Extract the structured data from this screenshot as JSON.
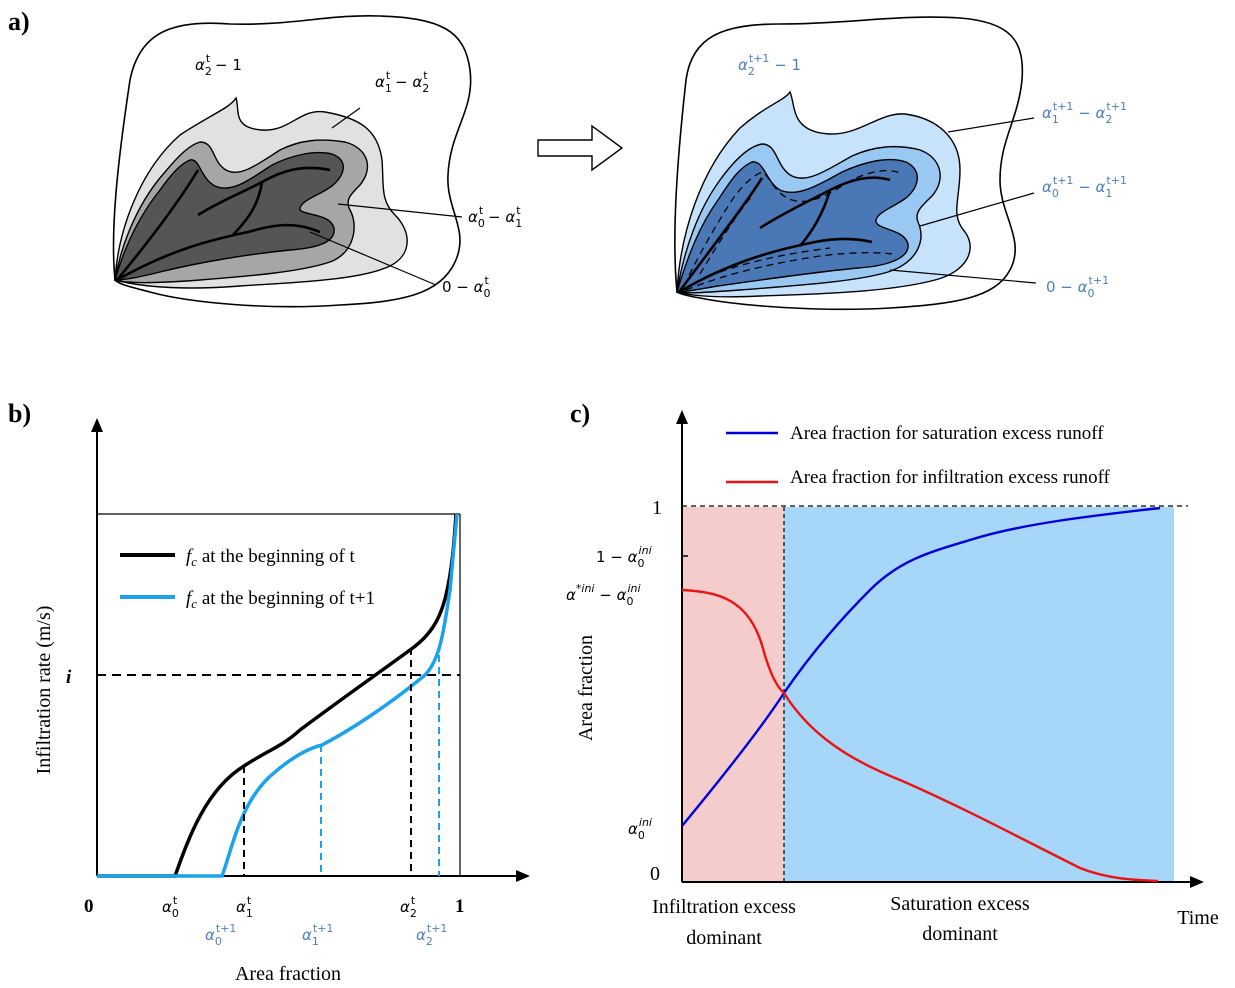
{
  "panels": {
    "a": {
      "label": "a)"
    },
    "b": {
      "label": "b)"
    },
    "c": {
      "label": "c)"
    }
  },
  "diagram_a": {
    "left": {
      "labels": {
        "outer": {
          "base": "α",
          "sub": "2",
          "sup": "t",
          "tail": " − 1"
        },
        "z12": {
          "base1": "α",
          "sub1": "1",
          "sup1": "t",
          "mid": " − ",
          "base2": "α",
          "sub2": "2",
          "sup2": "t"
        },
        "z01": {
          "base1": "α",
          "sub1": "0",
          "sup1": "t",
          "mid": " − ",
          "base2": "α",
          "sub2": "1",
          "sup2": "t"
        },
        "z0": {
          "pre": "0 − ",
          "base": "α",
          "sub": "0",
          "sup": "t"
        }
      },
      "colors": {
        "outer": "#ffffff",
        "zone2": "#e1e1e1",
        "zone1": "#a6a6a6",
        "zone0": "#555555"
      }
    },
    "right": {
      "labels": {
        "outer": {
          "base": "α",
          "sub": "2",
          "sup": "t+1",
          "tail": " − 1"
        },
        "z12": {
          "base1": "α",
          "sub1": "1",
          "sup1": "t+1",
          "mid": " − ",
          "base2": "α",
          "sub2": "2",
          "sup2": "t+1"
        },
        "z01": {
          "base1": "α",
          "sub1": "0",
          "sup1": "t+1",
          "mid": " − ",
          "base2": "α",
          "sub2": "1",
          "sup2": "t+1"
        },
        "z0": {
          "pre": "0 − ",
          "base": "α",
          "sub": "0",
          "sup": "t+1"
        }
      },
      "colors": {
        "outer": "#ffffff",
        "zone2": "#c7e3fb",
        "zone1": "#99c9f2",
        "zone0": "#4a78b6",
        "label": "#4b7fc2"
      }
    }
  },
  "diagram_b": {
    "ylabel": "Infiltration rate (m/s)",
    "xlabel": "Area fraction",
    "y_tick_i": "i",
    "x_tick_0": "0",
    "x_tick_1": "1",
    "legend": [
      {
        "sym": "f",
        "sub": "c",
        "text": " at the beginning of t",
        "color": "#000000"
      },
      {
        "sym": "f",
        "sub": "c",
        "text": " at the beginning of t+1",
        "color": "#1aa3ec"
      }
    ],
    "ticks_black": [
      {
        "base": "α",
        "sub": "0",
        "sup": "t"
      },
      {
        "base": "α",
        "sub": "1",
        "sup": "t"
      },
      {
        "base": "α",
        "sub": "2",
        "sup": "t"
      }
    ],
    "ticks_blue": [
      {
        "base": "α",
        "sub": "0",
        "sup": "t+1"
      },
      {
        "base": "α",
        "sub": "1",
        "sup": "t+1"
      },
      {
        "base": "α",
        "sub": "2",
        "sup": "t+1"
      }
    ],
    "blue_color": "#4b7fc2"
  },
  "diagram_c": {
    "ylabel": "Area fraction",
    "xlabel": "Time",
    "y_ticks": {
      "one": "1",
      "zero": "0",
      "one_minus": {
        "pre": "1 − ",
        "base": "α",
        "sub": "0",
        "sup": "ini"
      },
      "star_minus": {
        "base1": "α",
        "sup1": "*ini",
        "mid": " − ",
        "base2": "α",
        "sub2": "0",
        "sup2": "ini"
      },
      "alpha0": {
        "base": "α",
        "sub": "0",
        "sup": "ini"
      }
    },
    "legend": [
      {
        "text": "Area fraction for saturation excess runoff",
        "color": "#0000dd"
      },
      {
        "text": "Area fraction for infiltration excess runoff",
        "color": "#ee1111"
      }
    ],
    "regions": {
      "left_line1": "Infiltration excess",
      "left_line2": "dominant",
      "right_line1": "Saturation excess",
      "right_line2": "dominant",
      "left_color": "#f4cccc",
      "right_color": "#a6d7f8"
    }
  }
}
